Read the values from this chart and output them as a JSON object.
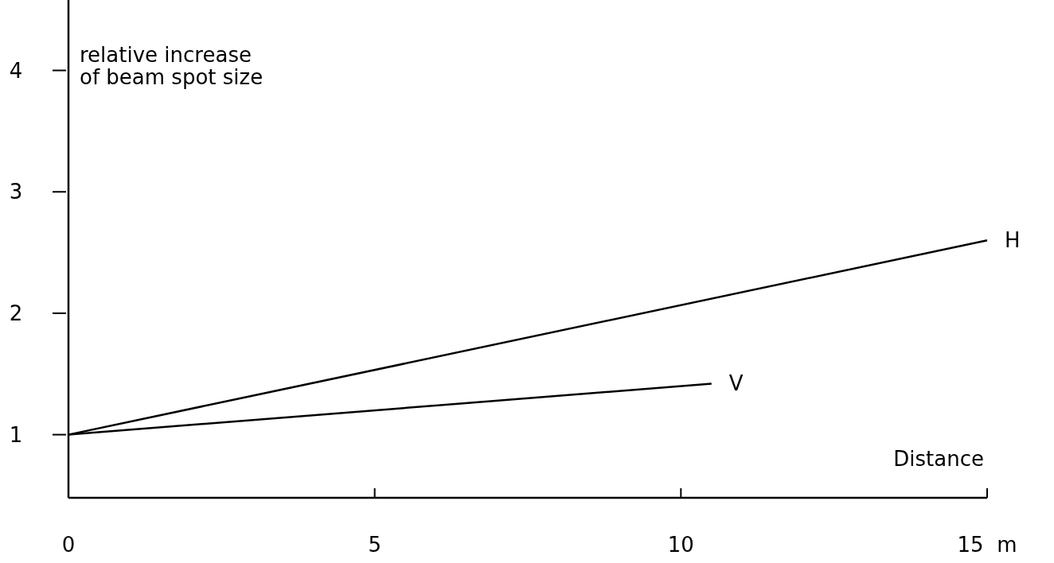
{
  "chart_data": {
    "type": "line",
    "ylabel": "relative increase\nof beam spot size",
    "xlabel": "Distance",
    "xlim": [
      0,
      15
    ],
    "ylim": [
      0.48,
      4.58
    ],
    "xticks": [
      0,
      5,
      10,
      {
        "value": 15,
        "label": "15  m"
      }
    ],
    "yticks": [
      1,
      2,
      3,
      4
    ],
    "series": [
      {
        "name": "H",
        "color": "#000000",
        "x": [
          0,
          15
        ],
        "values": [
          1,
          2.6
        ]
      },
      {
        "name": "V",
        "color": "#000000",
        "x": [
          0,
          10.5
        ],
        "values": [
          1,
          1.42
        ]
      }
    ],
    "grid": false,
    "legend": false,
    "marker": "none",
    "line_style": "solid"
  }
}
